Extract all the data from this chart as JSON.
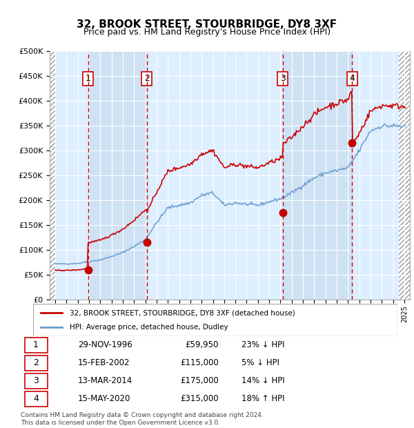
{
  "title": "32, BROOK STREET, STOURBRIDGE, DY8 3XF",
  "subtitle": "Price paid vs. HM Land Registry's House Price Index (HPI)",
  "legend_property": "32, BROOK STREET, STOURBRIDGE, DY8 3XF (detached house)",
  "legend_hpi": "HPI: Average price, detached house, Dudley",
  "transactions": [
    {
      "num": 1,
      "date": "29-NOV-1996",
      "year": 1996.91,
      "price": 59950,
      "pct": "23%",
      "dir": "↓"
    },
    {
      "num": 2,
      "date": "15-FEB-2002",
      "year": 2002.12,
      "price": 115000,
      "pct": "5%",
      "dir": "↓"
    },
    {
      "num": 3,
      "date": "13-MAR-2014",
      "year": 2014.2,
      "price": 175000,
      "pct": "14%",
      "dir": "↓"
    },
    {
      "num": 4,
      "date": "15-MAY-2020",
      "year": 2020.37,
      "price": 315000,
      "pct": "18%",
      "dir": "↑"
    }
  ],
  "property_line_color": "#cc0000",
  "hpi_line_color": "#6699cc",
  "vline_color": "#cc0000",
  "dot_color": "#cc0000",
  "background_plot": "#ddeeff",
  "background_stripe": "#c8ddf0",
  "ylim": [
    0,
    500000
  ],
  "xlim_start": 1993.5,
  "xlim_end": 2025.5,
  "footer": "Contains HM Land Registry data © Crown copyright and database right 2024.\nThis data is licensed under the Open Government Licence v3.0."
}
